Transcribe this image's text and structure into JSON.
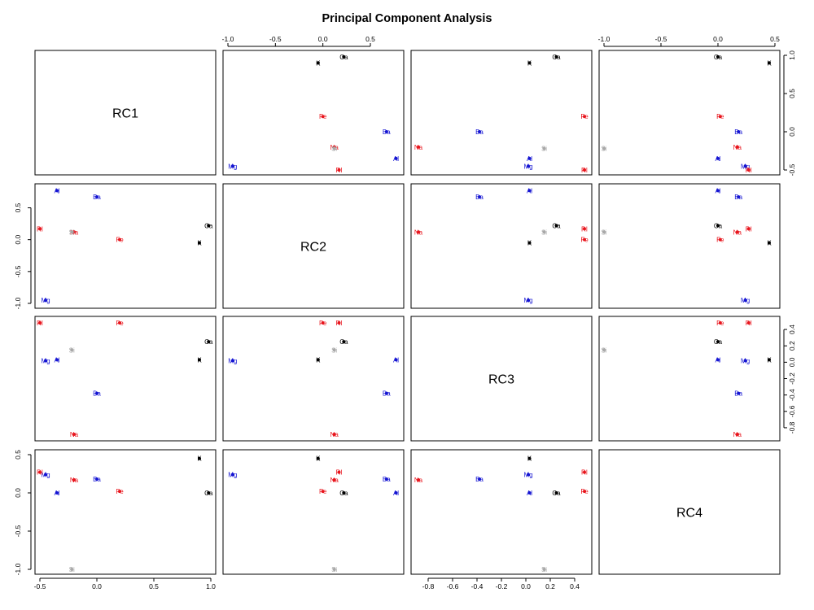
{
  "chart_data": {
    "type": "scatter",
    "title": "Principal Component Analysis",
    "variables": [
      "RC1",
      "RC2",
      "RC3",
      "RC4"
    ],
    "ranges": [
      [
        -0.5,
        1.0
      ],
      [
        -1.0,
        0.8
      ],
      [
        -0.9,
        0.5
      ],
      [
        -1.0,
        0.5
      ]
    ],
    "ticks": [
      {
        "values": [
          -0.5,
          0.0,
          0.5,
          1.0
        ],
        "labels": [
          "-0.5",
          "0.0",
          "0.5",
          "1.0"
        ]
      },
      {
        "values": [
          -1.0,
          -0.5,
          0.0,
          0.5
        ],
        "labels": [
          "-1.0",
          "-0.5",
          "0.0",
          "0.5"
        ]
      },
      {
        "values": [
          -0.8,
          -0.6,
          -0.4,
          -0.2,
          0.0,
          0.2,
          0.4
        ],
        "labels": [
          "-0.8",
          "-0.6",
          "-0.4",
          "-0.2",
          "0.0",
          "0.2",
          "0.4"
        ]
      },
      {
        "values": [
          -1.0,
          -0.5,
          0.0,
          0.5
        ],
        "labels": [
          "-1.0",
          "-0.5",
          "0.0",
          "0.5"
        ]
      }
    ],
    "colors": {
      "red": "#e8141c",
      "blue": "#1414d2",
      "black": "#000000",
      "gray": "#a8a8a8"
    },
    "points": [
      {
        "label": "K",
        "color": "black",
        "values": [
          0.9,
          -0.05,
          0.03,
          0.45
        ]
      },
      {
        "label": "Ca",
        "color": "black",
        "values": [
          0.98,
          0.22,
          0.25,
          0.0
        ]
      },
      {
        "label": "Fe",
        "color": "red",
        "values": [
          0.2,
          0.0,
          0.48,
          0.02
        ]
      },
      {
        "label": "Na",
        "color": "red",
        "values": [
          -0.2,
          0.12,
          -0.88,
          0.17
        ]
      },
      {
        "label": "Si",
        "color": "gray",
        "values": [
          -0.22,
          0.12,
          0.15,
          -1.0
        ]
      },
      {
        "label": "Ba",
        "color": "blue",
        "values": [
          0.0,
          0.67,
          -0.38,
          0.18
        ]
      },
      {
        "label": "Al",
        "color": "blue",
        "values": [
          -0.35,
          0.77,
          0.03,
          0.0
        ]
      },
      {
        "label": "Mg",
        "color": "blue",
        "values": [
          -0.45,
          -0.95,
          0.02,
          0.24
        ]
      },
      {
        "label": "RI",
        "color": "red",
        "values": [
          -0.5,
          0.17,
          0.48,
          0.27
        ]
      }
    ]
  }
}
